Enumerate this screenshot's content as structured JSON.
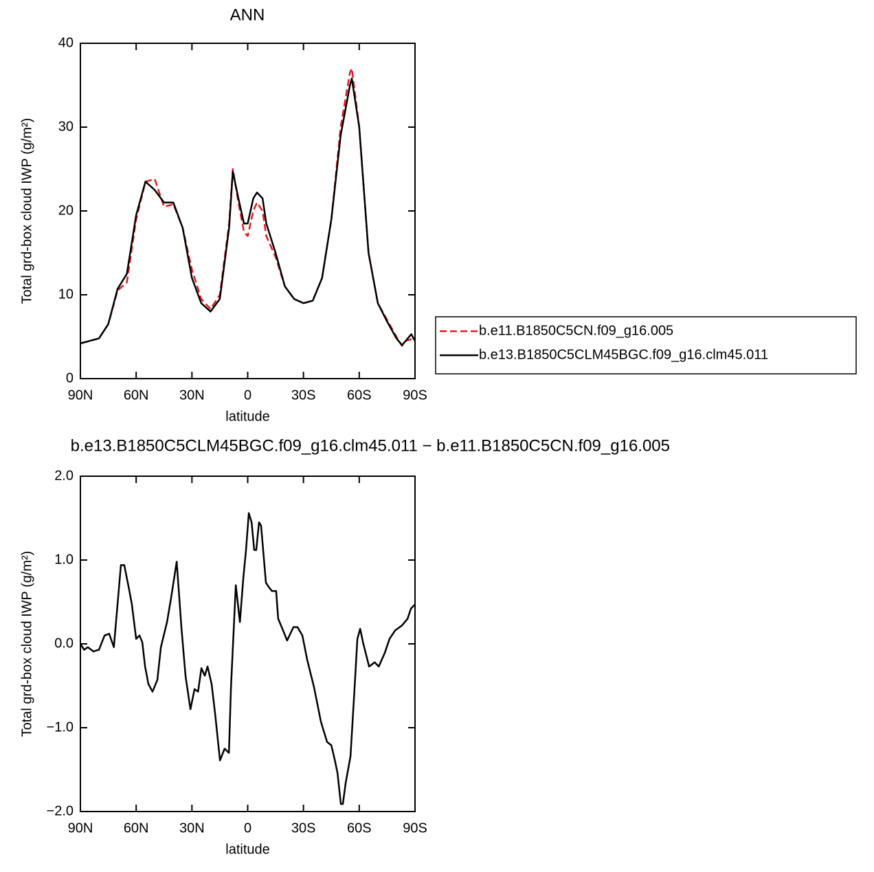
{
  "chart_data": [
    {
      "type": "line",
      "title": "ANN",
      "x_label": "latitude",
      "y_label": "Total grd-box cloud IWP (g/m²)",
      "x": [
        90,
        85,
        80,
        75,
        70,
        65,
        60,
        55,
        50,
        45,
        40,
        35,
        30,
        25,
        20,
        15,
        10,
        8,
        5,
        2,
        0,
        -3,
        -5,
        -8,
        -10,
        -15,
        -20,
        -25,
        -30,
        -35,
        -40,
        -45,
        -50,
        -55,
        -56,
        -60,
        -65,
        -70,
        -75,
        -80,
        -83,
        -85,
        -88,
        -90
      ],
      "xlim": [
        90,
        -90
      ],
      "xticks": [
        {
          "value": 90,
          "label": "90N"
        },
        {
          "value": 60,
          "label": "60N"
        },
        {
          "value": 30,
          "label": "30N"
        },
        0,
        {
          "value": -30,
          "label": "30S"
        },
        {
          "value": -60,
          "label": "60S"
        },
        {
          "value": -90,
          "label": "90S"
        }
      ],
      "ylim": [
        0,
        40
      ],
      "yticks": [
        0,
        10,
        20,
        30,
        40
      ],
      "legend_position": "right",
      "series": [
        {
          "name": "b.e11.B1850C5CN.f09_g16.005",
          "color": "#e31a1c",
          "line_style": "dashed",
          "values": [
            4.2,
            4.5,
            4.8,
            6.5,
            10.5,
            11.5,
            19,
            23.5,
            23.8,
            20.5,
            20.8,
            18,
            13,
            9.5,
            8.3,
            10,
            18.5,
            25,
            21,
            17.5,
            17,
            20,
            21,
            20,
            17,
            14.5,
            11,
            9.5,
            9,
            9.3,
            12,
            19,
            30,
            36.5,
            37,
            30,
            15,
            9,
            7,
            5,
            3.9,
            4.5,
            4.7,
            4.5
          ]
        },
        {
          "name": "b.e13.B1850C5CLM45BGC.f09_g16.clm45.011",
          "color": "#000000",
          "line_style": "solid",
          "values": [
            4.2,
            4.5,
            4.8,
            6.5,
            10.7,
            12.5,
            19.5,
            23.5,
            22.5,
            21,
            21,
            18,
            12,
            9,
            8,
            9.5,
            18,
            24.7,
            21.5,
            18.5,
            18.5,
            21.5,
            22.2,
            21.5,
            18.5,
            15,
            11,
            9.5,
            9,
            9.3,
            12,
            19,
            29,
            35,
            35.8,
            30,
            15,
            9,
            6.8,
            4.8,
            4,
            4.5,
            5.3,
            4.5
          ]
        }
      ]
    },
    {
      "type": "line",
      "title": "b.e13.B1850C5CLM45BGC.f09_g16.clm45.011 − b.e11.B1850C5CN.f09_g16.005",
      "x_label": "latitude",
      "y_label": "Total grd-box cloud IWP (g/m²)",
      "x": [
        90,
        88,
        86,
        83,
        80,
        77,
        74.5,
        72,
        68.2,
        66.4,
        63.8,
        62.3,
        60,
        58.2,
        56.7,
        55.2,
        53.4,
        51.2,
        48.6,
        46.7,
        43.4,
        41.2,
        38.2,
        35.6,
        33.4,
        30.8,
        28.6,
        26.7,
        24.9,
        23.1,
        21.6,
        19.4,
        17.5,
        14.9,
        12.4,
        10.1,
        9,
        6.4,
        4.2,
        2.3,
        0.9,
        -0.6,
        -2.1,
        -3.5,
        -4.6,
        -6.1,
        -7.2,
        -9.8,
        -11.6,
        -13.1,
        -15.3,
        -16.4,
        -19.4,
        -21.2,
        -24.6,
        -26.8,
        -29.4,
        -32,
        -35.7,
        -39.4,
        -42.7,
        -45,
        -46.8,
        -48.3,
        -50.1,
        -51.2,
        -52.7,
        -55.3,
        -57.5,
        -59,
        -60.5,
        -62,
        -65.3,
        -68.3,
        -70.5,
        -73.7,
        -76.3,
        -79.3,
        -83,
        -86,
        -87.8,
        -90
      ],
      "xlim": [
        90,
        -90
      ],
      "xticks": [
        {
          "value": 90,
          "label": "90N"
        },
        {
          "value": 60,
          "label": "60N"
        },
        {
          "value": 30,
          "label": "30N"
        },
        0,
        {
          "value": -30,
          "label": "30S"
        },
        {
          "value": -60,
          "label": "60S"
        },
        {
          "value": -90,
          "label": "90S"
        }
      ],
      "ylim": [
        -2,
        2
      ],
      "yticks": [
        {
          "value": -2,
          "label": "−2.0"
        },
        {
          "value": -1,
          "label": "−1.0"
        },
        {
          "value": 0,
          "label": "0.0"
        },
        {
          "value": 1,
          "label": "1.0"
        },
        {
          "value": 2,
          "label": "2.0"
        }
      ],
      "series": [
        {
          "color": "#000000",
          "line_style": "solid",
          "values": [
            0,
            -0.07,
            -0.04,
            -0.09,
            -0.07,
            0.1,
            0.12,
            -0.04,
            0.94,
            0.94,
            0.65,
            0.47,
            0.06,
            0.1,
            0.02,
            -0.27,
            -0.48,
            -0.57,
            -0.43,
            -0.04,
            0.26,
            0.55,
            0.98,
            0.18,
            -0.39,
            -0.78,
            -0.54,
            -0.57,
            -0.29,
            -0.38,
            -0.27,
            -0.48,
            -0.84,
            -1.39,
            -1.25,
            -1.3,
            -0.52,
            0.7,
            0.26,
            0.8,
            1.12,
            1.56,
            1.45,
            1.12,
            1.12,
            1.45,
            1.41,
            0.73,
            0.67,
            0.63,
            0.63,
            0.3,
            0.14,
            0.04,
            0.2,
            0.2,
            0.1,
            -0.19,
            -0.52,
            -0.93,
            -1.17,
            -1.21,
            -1.38,
            -1.54,
            -1.91,
            -1.91,
            -1.66,
            -1.34,
            -0.52,
            0.06,
            0.18,
            0.02,
            -0.27,
            -0.22,
            -0.27,
            -0.11,
            0.06,
            0.16,
            0.22,
            0.3,
            0.42,
            0.47
          ]
        }
      ]
    }
  ]
}
